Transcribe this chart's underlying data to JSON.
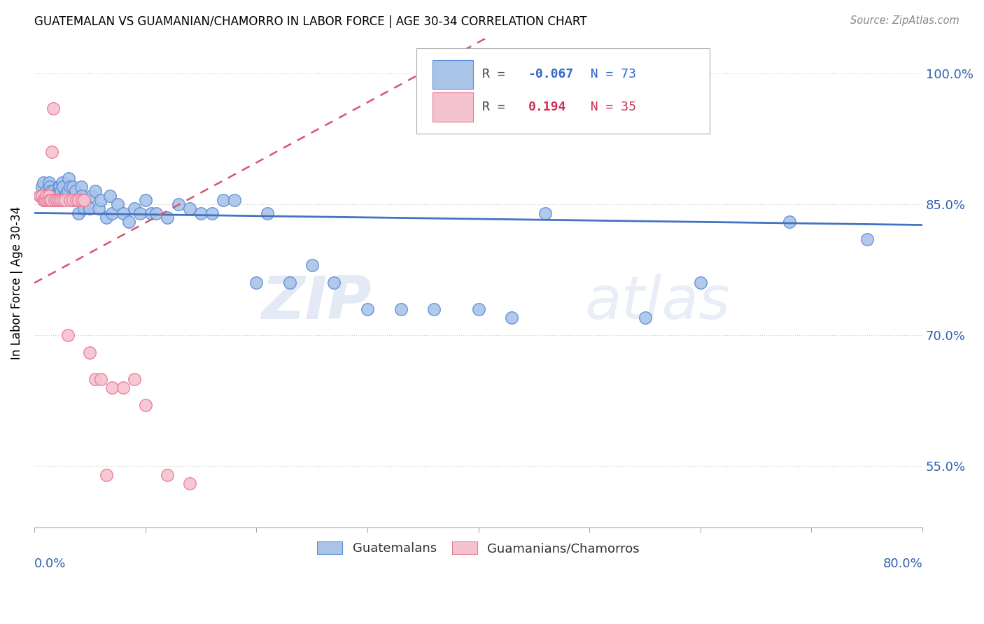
{
  "title": "GUATEMALAN VS GUAMANIAN/CHAMORRO IN LABOR FORCE | AGE 30-34 CORRELATION CHART",
  "source": "Source: ZipAtlas.com",
  "ylabel": "In Labor Force | Age 30-34",
  "yticks": [
    0.55,
    0.7,
    0.85,
    1.0
  ],
  "ytick_labels": [
    "55.0%",
    "70.0%",
    "85.0%",
    "100.0%"
  ],
  "xmin": 0.0,
  "xmax": 0.8,
  "ymin": 0.48,
  "ymax": 1.04,
  "blue_color": "#aac4e8",
  "blue_edge": "#5b8dd9",
  "pink_color": "#f5c2cf",
  "pink_edge": "#e87a97",
  "blue_label": "Guatemalans",
  "pink_label": "Guamanians/Chamorros",
  "R_blue": -0.067,
  "N_blue": 73,
  "R_pink": 0.194,
  "N_pink": 35,
  "trend_blue_color": "#4472c4",
  "trend_pink_color": "#d9546a",
  "watermark_zip": "ZIP",
  "watermark_atlas": "atlas",
  "blue_points_x": [
    0.005,
    0.007,
    0.008,
    0.009,
    0.01,
    0.011,
    0.012,
    0.013,
    0.014,
    0.015,
    0.016,
    0.017,
    0.018,
    0.019,
    0.02,
    0.021,
    0.022,
    0.022,
    0.023,
    0.024,
    0.025,
    0.026,
    0.027,
    0.028,
    0.03,
    0.031,
    0.032,
    0.034,
    0.035,
    0.037,
    0.038,
    0.04,
    0.042,
    0.043,
    0.045,
    0.05,
    0.052,
    0.055,
    0.058,
    0.06,
    0.065,
    0.068,
    0.07,
    0.075,
    0.08,
    0.085,
    0.09,
    0.095,
    0.1,
    0.105,
    0.11,
    0.12,
    0.13,
    0.14,
    0.15,
    0.16,
    0.17,
    0.18,
    0.2,
    0.21,
    0.23,
    0.25,
    0.27,
    0.3,
    0.33,
    0.36,
    0.4,
    0.43,
    0.46,
    0.55,
    0.6,
    0.68,
    0.75
  ],
  "blue_points_y": [
    0.86,
    0.87,
    0.875,
    0.86,
    0.86,
    0.865,
    0.86,
    0.875,
    0.87,
    0.865,
    0.855,
    0.865,
    0.86,
    0.855,
    0.855,
    0.855,
    0.87,
    0.86,
    0.87,
    0.865,
    0.875,
    0.87,
    0.86,
    0.86,
    0.865,
    0.88,
    0.87,
    0.855,
    0.87,
    0.865,
    0.855,
    0.84,
    0.87,
    0.86,
    0.845,
    0.845,
    0.86,
    0.865,
    0.845,
    0.855,
    0.835,
    0.86,
    0.84,
    0.85,
    0.84,
    0.83,
    0.845,
    0.84,
    0.855,
    0.84,
    0.84,
    0.835,
    0.85,
    0.845,
    0.84,
    0.84,
    0.855,
    0.855,
    0.76,
    0.84,
    0.76,
    0.78,
    0.76,
    0.73,
    0.73,
    0.73,
    0.73,
    0.72,
    0.84,
    0.72,
    0.76,
    0.83,
    0.81
  ],
  "pink_points_x": [
    0.005,
    0.007,
    0.008,
    0.009,
    0.01,
    0.011,
    0.012,
    0.013,
    0.014,
    0.015,
    0.016,
    0.017,
    0.018,
    0.02,
    0.022,
    0.024,
    0.026,
    0.028,
    0.03,
    0.032,
    0.035,
    0.038,
    0.04,
    0.043,
    0.045,
    0.05,
    0.055,
    0.06,
    0.065,
    0.07,
    0.08,
    0.09,
    0.1,
    0.12,
    0.14
  ],
  "pink_points_y": [
    0.86,
    0.86,
    0.855,
    0.855,
    0.855,
    0.86,
    0.855,
    0.86,
    0.855,
    0.855,
    0.91,
    0.96,
    0.855,
    0.855,
    0.855,
    0.855,
    0.855,
    0.855,
    0.7,
    0.855,
    0.855,
    0.855,
    0.855,
    0.855,
    0.855,
    0.68,
    0.65,
    0.65,
    0.54,
    0.64,
    0.64,
    0.65,
    0.62,
    0.54,
    0.53
  ]
}
